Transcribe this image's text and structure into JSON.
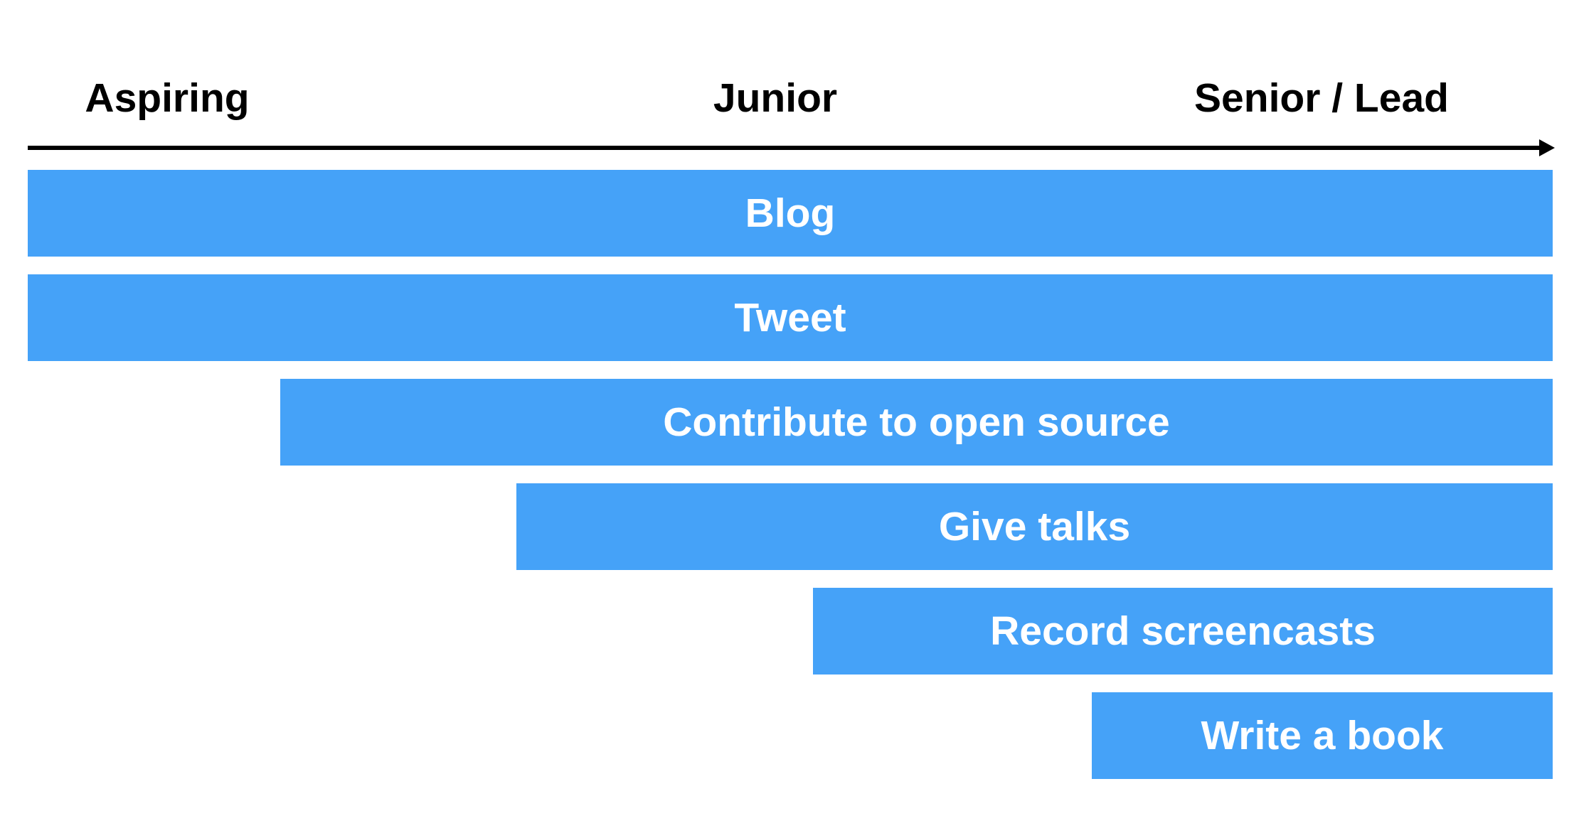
{
  "axis": {
    "stages": [
      "Aspiring",
      "Junior",
      "Senior / Lead"
    ],
    "line_color": "#000000"
  },
  "activities": [
    {
      "label": "Blog"
    },
    {
      "label": "Tweet"
    },
    {
      "label": "Contribute to open source"
    },
    {
      "label": "Give talks"
    },
    {
      "label": "Record screencasts"
    },
    {
      "label": "Write a book"
    }
  ],
  "colors": {
    "bar": "#45a2f8",
    "bar_text": "#ffffff",
    "stage_text": "#000000"
  }
}
